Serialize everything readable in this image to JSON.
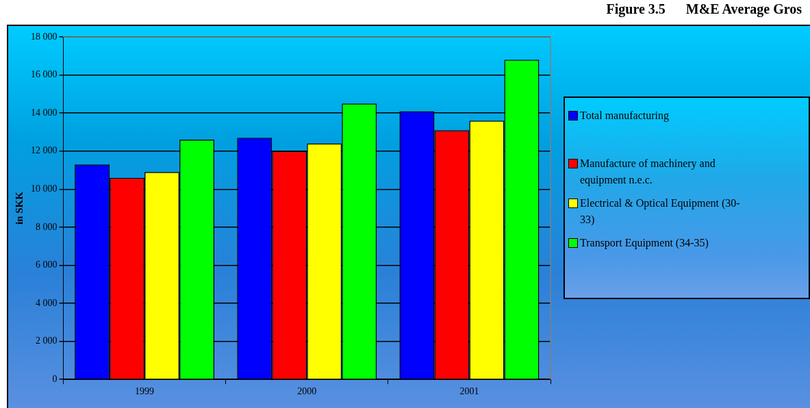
{
  "chart_data": {
    "type": "bar",
    "title": "Figure 3.5      M&E Average Gros",
    "ylabel": "in SKK",
    "categories": [
      "1999",
      "2000",
      "2001"
    ],
    "series": [
      {
        "name": "Total manufacturing",
        "color": "#0000ff",
        "values": [
          11300,
          12700,
          14100
        ]
      },
      {
        "name": "Manufacture of machinery and equipment n.e.c.",
        "color": "#ff0000",
        "values": [
          10600,
          12000,
          13100
        ]
      },
      {
        "name": "Electrical & Optical Equipment (30-33)",
        "color": "#ffff00",
        "values": [
          10900,
          12400,
          13600
        ]
      },
      {
        "name": "Transport Equipment (34-35)",
        "color": "#00ff00",
        "values": [
          12600,
          14500,
          16800
        ]
      }
    ],
    "ylim": [
      0,
      18000
    ],
    "yticks": [
      {
        "value": 0,
        "label": "0"
      },
      {
        "value": 2000,
        "label": "2 000"
      },
      {
        "value": 4000,
        "label": "4 000"
      },
      {
        "value": 6000,
        "label": "6 000"
      },
      {
        "value": 8000,
        "label": "8 000"
      },
      {
        "value": 10000,
        "label": "10 000"
      },
      {
        "value": 12000,
        "label": "12 000"
      },
      {
        "value": 14000,
        "label": "14 000"
      },
      {
        "value": 16000,
        "label": "16 000"
      },
      {
        "value": 18000,
        "label": "18 000"
      }
    ],
    "grid": "y",
    "legend": "right"
  }
}
